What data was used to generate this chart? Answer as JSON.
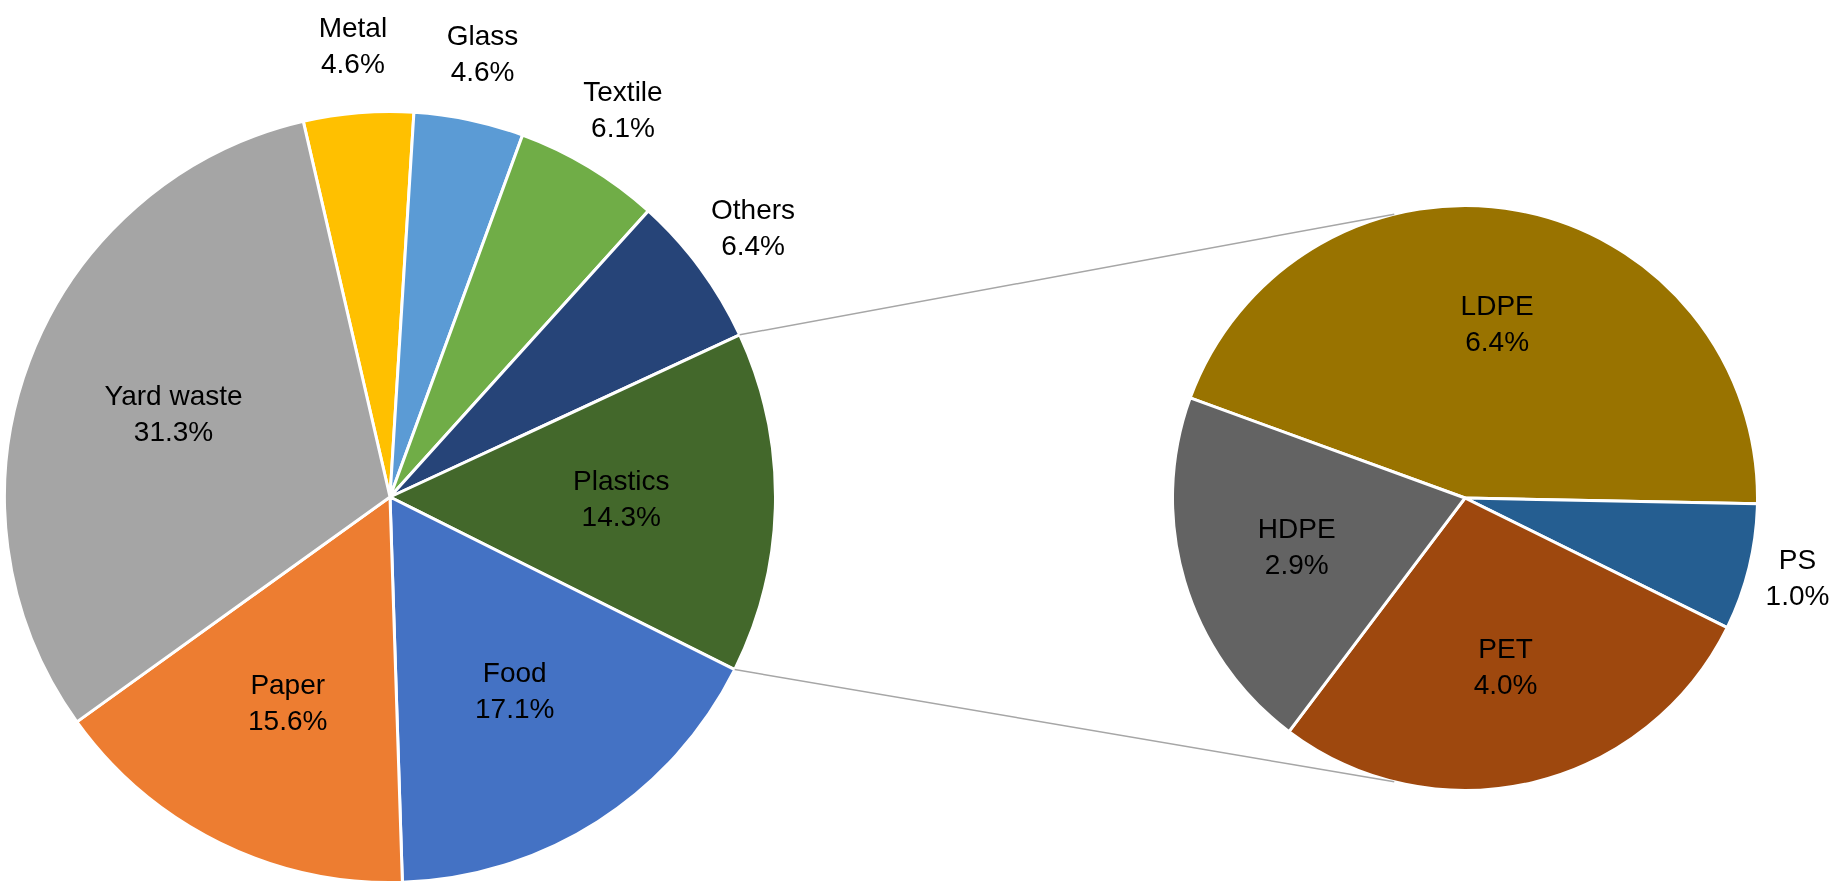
{
  "chart_data": [
    {
      "type": "pie",
      "categories": [
        "Metal",
        "Glass",
        "Textile",
        "Others",
        "Plastics",
        "Food",
        "Paper",
        "Yard waste"
      ],
      "values": [
        4.6,
        4.6,
        6.1,
        6.4,
        14.3,
        17.1,
        15.6,
        31.3
      ],
      "colors": [
        "#ffc000",
        "#5b9bd5",
        "#70ad47",
        "#264478",
        "#43682b",
        "#4472c4",
        "#ed7d31",
        "#a5a5a5"
      ],
      "value_labels": [
        "4.6%",
        "4.6%",
        "6.1%",
        "6.4%",
        "14.3%",
        "17.1%",
        "15.6%",
        "31.3%"
      ]
    },
    {
      "type": "pie",
      "categories": [
        "LDPE",
        "PS",
        "PET",
        "HDPE"
      ],
      "values": [
        6.4,
        1.0,
        4.0,
        2.9
      ],
      "colors": [
        "#997300",
        "#255e91",
        "#9e480e",
        "#636363"
      ],
      "value_labels": [
        "6.4%",
        "1.0%",
        "4.0%",
        "2.9%"
      ]
    }
  ]
}
